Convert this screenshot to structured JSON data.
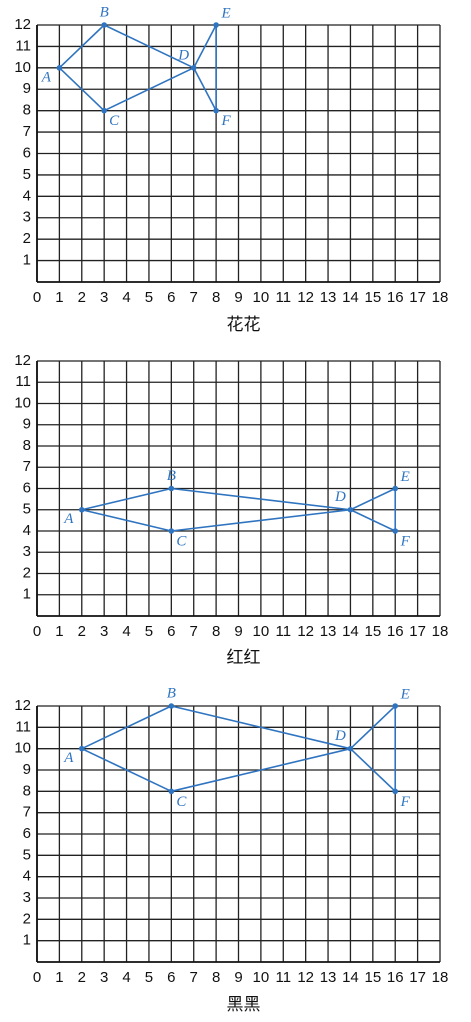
{
  "chart_data": [
    {
      "type": "scatter",
      "title": "花花",
      "labels": [
        "A",
        "B",
        "C",
        "D",
        "E",
        "F"
      ],
      "x": [
        1,
        3,
        3,
        7,
        8,
        8
      ],
      "y": [
        10,
        12,
        8,
        10,
        12,
        8
      ],
      "color": "#2f74c0",
      "xlim": [
        0,
        18
      ],
      "ylim": [
        0,
        12
      ],
      "xticks": [
        0,
        1,
        2,
        3,
        4,
        5,
        6,
        7,
        8,
        9,
        10,
        11,
        12,
        13,
        14,
        15,
        16,
        17,
        18
      ],
      "yticks": [
        1,
        2,
        3,
        4,
        5,
        6,
        7,
        8,
        9,
        10,
        11,
        12
      ],
      "grid": true
    },
    {
      "type": "scatter",
      "title": "红红",
      "labels": [
        "A",
        "B",
        "C",
        "D",
        "E",
        "F"
      ],
      "x": [
        2,
        6,
        6,
        14,
        16,
        16
      ],
      "y": [
        5,
        6,
        4,
        5,
        6,
        4
      ],
      "color": "#2f74c0",
      "xlim": [
        0,
        18
      ],
      "ylim": [
        0,
        12
      ],
      "xticks": [
        0,
        1,
        2,
        3,
        4,
        5,
        6,
        7,
        8,
        9,
        10,
        11,
        12,
        13,
        14,
        15,
        16,
        17,
        18
      ],
      "yticks": [
        1,
        2,
        3,
        4,
        5,
        6,
        7,
        8,
        9,
        10,
        11,
        12
      ],
      "grid": true
    },
    {
      "type": "scatter",
      "title": "黑黑",
      "labels": [
        "A",
        "B",
        "C",
        "D",
        "E",
        "F"
      ],
      "x": [
        2,
        6,
        6,
        14,
        16,
        16
      ],
      "y": [
        10,
        12,
        8,
        10,
        12,
        8
      ],
      "color": "#2f74c0",
      "xlim": [
        0,
        18
      ],
      "ylim": [
        0,
        12
      ],
      "xticks": [
        0,
        1,
        2,
        3,
        4,
        5,
        6,
        7,
        8,
        9,
        10,
        11,
        12,
        13,
        14,
        15,
        16,
        17,
        18
      ],
      "yticks": [
        1,
        2,
        3,
        4,
        5,
        6,
        7,
        8,
        9,
        10,
        11,
        12
      ],
      "grid": true
    }
  ]
}
